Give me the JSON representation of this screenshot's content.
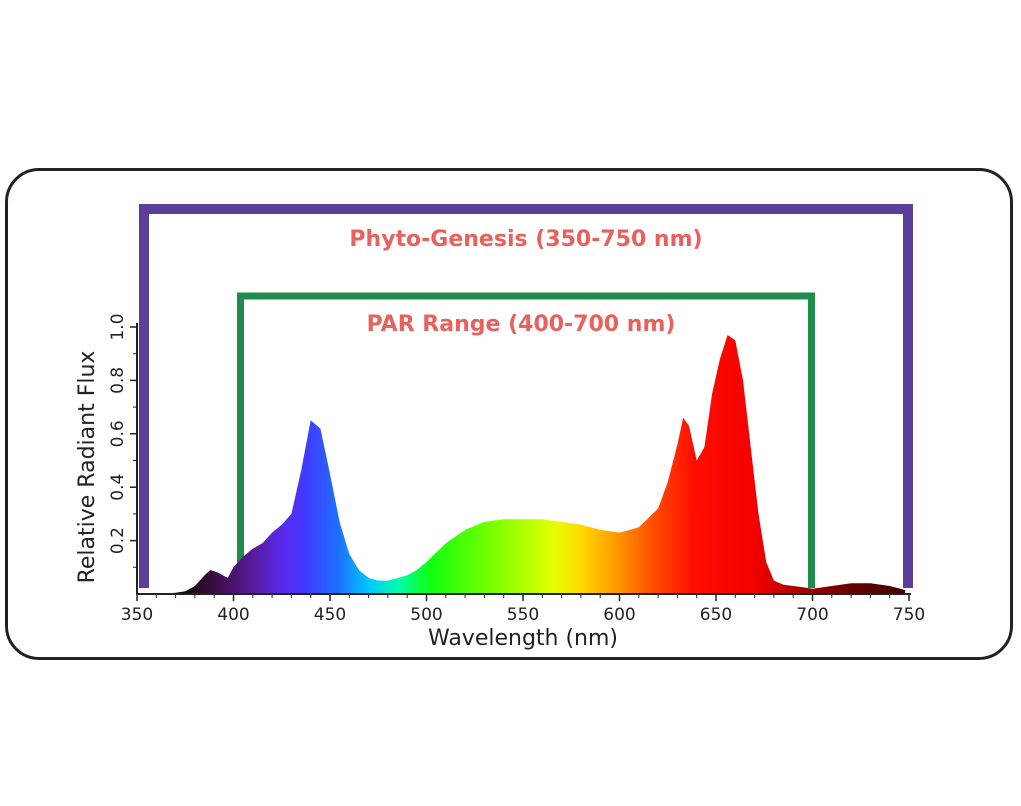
{
  "chart_data": {
    "type": "area",
    "xlabel": "Wavelength (nm)",
    "ylabel": "Relative Radiant Flux",
    "xlim": [
      350,
      750
    ],
    "ylim": [
      0,
      1.1
    ],
    "xticks": [
      350,
      400,
      450,
      500,
      550,
      600,
      650,
      700,
      750
    ],
    "xtick_labels": [
      "350",
      "400",
      "450",
      "500",
      "550",
      "600",
      "650",
      "700",
      "750"
    ],
    "yticks": [
      0.2,
      0.4,
      0.6,
      0.8,
      1.0
    ],
    "ytick_labels": [
      "0.2",
      "0.4",
      "0.6",
      "0.8",
      "1.0"
    ],
    "fill": "visible-spectrum color gradient",
    "x": [
      350,
      360,
      365,
      370,
      375,
      380,
      385,
      388,
      392,
      397,
      400,
      405,
      410,
      415,
      420,
      425,
      430,
      435,
      440,
      445,
      450,
      455,
      460,
      465,
      470,
      475,
      480,
      485,
      490,
      495,
      500,
      510,
      520,
      530,
      540,
      550,
      560,
      570,
      580,
      590,
      600,
      610,
      620,
      625,
      630,
      633,
      636,
      640,
      644,
      648,
      652,
      656,
      660,
      664,
      668,
      672,
      676,
      680,
      685,
      690,
      695,
      700,
      710,
      720,
      730,
      740,
      748
    ],
    "values": [
      0.0,
      0.0,
      0.002,
      0.005,
      0.01,
      0.03,
      0.07,
      0.09,
      0.08,
      0.06,
      0.1,
      0.14,
      0.17,
      0.19,
      0.23,
      0.26,
      0.3,
      0.46,
      0.65,
      0.62,
      0.45,
      0.27,
      0.15,
      0.09,
      0.06,
      0.05,
      0.05,
      0.06,
      0.07,
      0.09,
      0.12,
      0.19,
      0.24,
      0.27,
      0.28,
      0.28,
      0.28,
      0.27,
      0.26,
      0.24,
      0.23,
      0.25,
      0.32,
      0.42,
      0.56,
      0.66,
      0.63,
      0.5,
      0.55,
      0.75,
      0.88,
      0.97,
      0.95,
      0.8,
      0.55,
      0.3,
      0.12,
      0.05,
      0.035,
      0.03,
      0.025,
      0.02,
      0.03,
      0.04,
      0.04,
      0.03,
      0.015
    ],
    "ranges": [
      {
        "label": "Phyto-Genesis (350-750 nm)",
        "start": 350,
        "end": 750,
        "color": "#5b3f98"
      },
      {
        "label": "PAR Range (400-700 nm)",
        "start": 400,
        "end": 700,
        "color": "#1f8c4d"
      }
    ],
    "annotation_color": "#e8615d"
  }
}
